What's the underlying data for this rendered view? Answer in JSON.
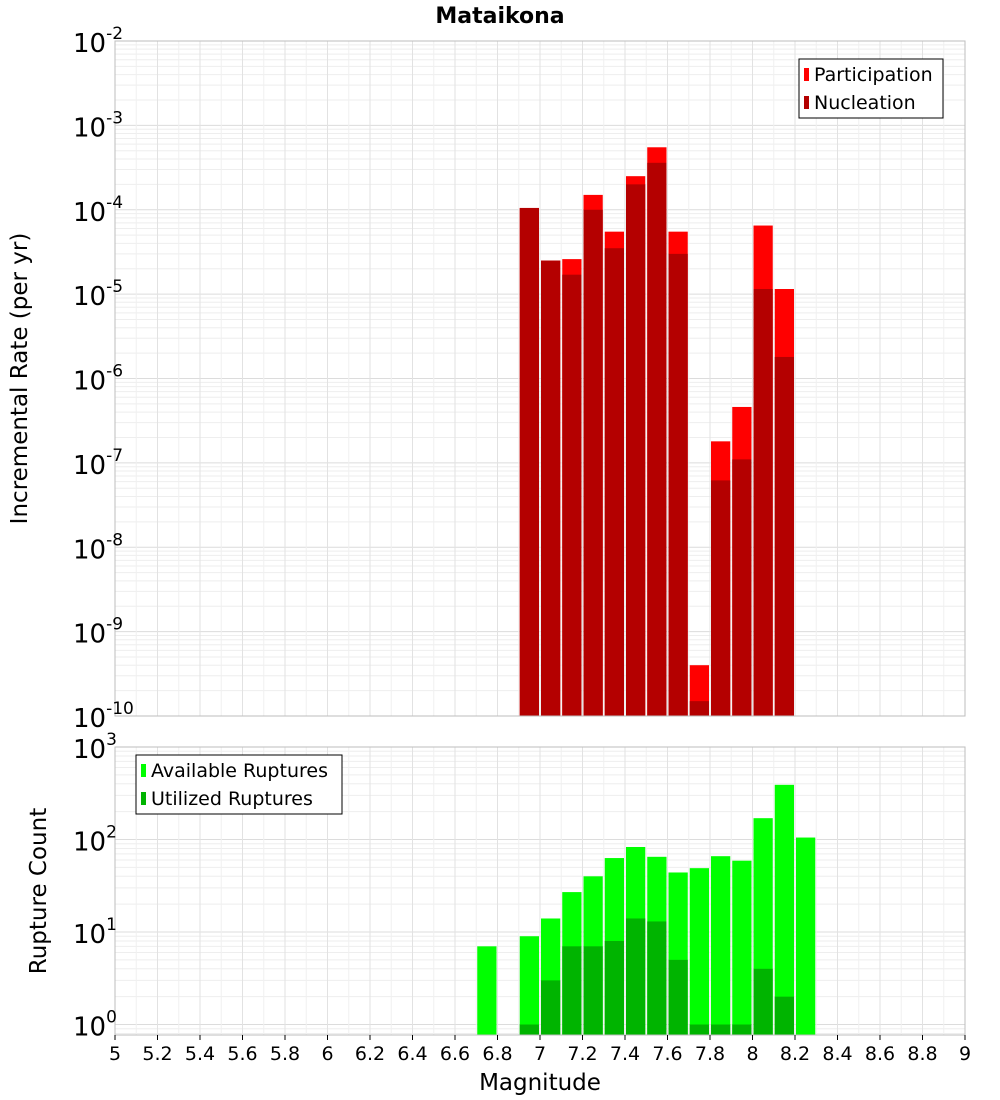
{
  "chart_data": [
    {
      "type": "bar",
      "title": "Mataikona",
      "ylabel": "Incremental Rate (per yr)",
      "xlabel": "",
      "yscale": "log",
      "ylim": [
        1e-10,
        0.01
      ],
      "xlim": [
        5,
        9
      ],
      "grid": true,
      "legend_position": "top-right",
      "y_tick_exponents": [
        "-10",
        "-9",
        "-8",
        "-7",
        "-6",
        "-5",
        "-4",
        "-3",
        "-2"
      ],
      "x": [
        6.95,
        7.05,
        7.15,
        7.25,
        7.35,
        7.45,
        7.55,
        7.65,
        7.75,
        7.85,
        7.95,
        8.05,
        8.15
      ],
      "series": [
        {
          "name": "Participation",
          "color": "#ff0000",
          "values": [
            0.000105,
            2.5e-05,
            2.6e-05,
            0.00015,
            5.5e-05,
            0.00025,
            0.00055,
            5.5e-05,
            4e-10,
            1.8e-07,
            4.6e-07,
            6.5e-05,
            1.15e-05
          ]
        },
        {
          "name": "Nucleation",
          "color": "#b40000",
          "values": [
            0.000105,
            2.5e-05,
            1.7e-05,
            0.0001,
            3.5e-05,
            0.0002,
            0.00036,
            3e-05,
            1.5e-10,
            6.2e-08,
            1.1e-07,
            1.15e-05,
            1.8e-06
          ]
        }
      ]
    },
    {
      "type": "bar",
      "title": "",
      "ylabel": "Rupture Count",
      "xlabel": "Magnitude",
      "yscale": "log",
      "ylim": [
        0.77,
        1000
      ],
      "xlim": [
        5,
        9
      ],
      "grid": true,
      "legend_position": "top-left",
      "y_tick_exponents": [
        "0",
        "1",
        "2",
        "3"
      ],
      "x_ticks": [
        "5",
        "5.2",
        "5.4",
        "5.6",
        "5.8",
        "6",
        "6.2",
        "6.4",
        "6.6",
        "6.8",
        "7",
        "7.2",
        "7.4",
        "7.6",
        "7.8",
        "8",
        "8.2",
        "8.4",
        "8.6",
        "8.8",
        "9"
      ],
      "x": [
        6.75,
        6.95,
        7.05,
        7.15,
        7.25,
        7.35,
        7.45,
        7.55,
        7.65,
        7.75,
        7.85,
        7.95,
        8.05,
        8.15,
        8.25
      ],
      "series": [
        {
          "name": "Available Ruptures",
          "color": "#00ff00",
          "values": [
            7,
            9,
            14,
            27,
            40,
            63,
            83,
            65,
            44,
            49,
            66,
            59,
            170,
            390,
            105
          ]
        },
        {
          "name": "Utilized Ruptures",
          "color": "#00b400",
          "values": [
            null,
            1,
            3,
            7,
            7,
            8,
            14,
            13,
            5,
            1,
            1,
            1,
            4,
            2,
            null
          ]
        }
      ]
    }
  ]
}
